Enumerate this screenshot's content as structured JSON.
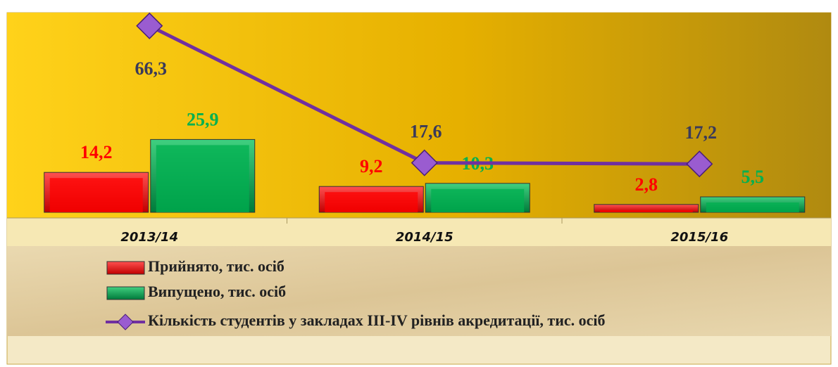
{
  "chart_data": {
    "type": "bar",
    "categories": [
      "2013/14",
      "2014/15",
      "2015/16"
    ],
    "ylim": [
      0,
      70
    ],
    "series": [
      {
        "name": "Прийнято, тис. осіб",
        "type": "bar",
        "color": "#ff0000",
        "label_color": "#ff0000",
        "values": [
          14.2,
          9.2,
          2.8
        ],
        "value_labels": [
          "14,2",
          "9,2",
          "2,8"
        ]
      },
      {
        "name": "Випущено, тис. осіб",
        "type": "bar",
        "color": "#00b050",
        "label_color": "#00b050",
        "values": [
          25.9,
          10.3,
          5.5
        ],
        "value_labels": [
          "25,9",
          "10,3",
          "5,5"
        ]
      },
      {
        "name": "Кількість студентів у закладах ІІІ-IV рівнів акредитації, тис. осіб",
        "type": "line",
        "color": "#7030a0",
        "label_color": "#3a3a5a",
        "values": [
          66.3,
          17.6,
          17.2
        ],
        "value_labels": [
          "66,3",
          "17,6",
          "17,2"
        ]
      }
    ]
  }
}
